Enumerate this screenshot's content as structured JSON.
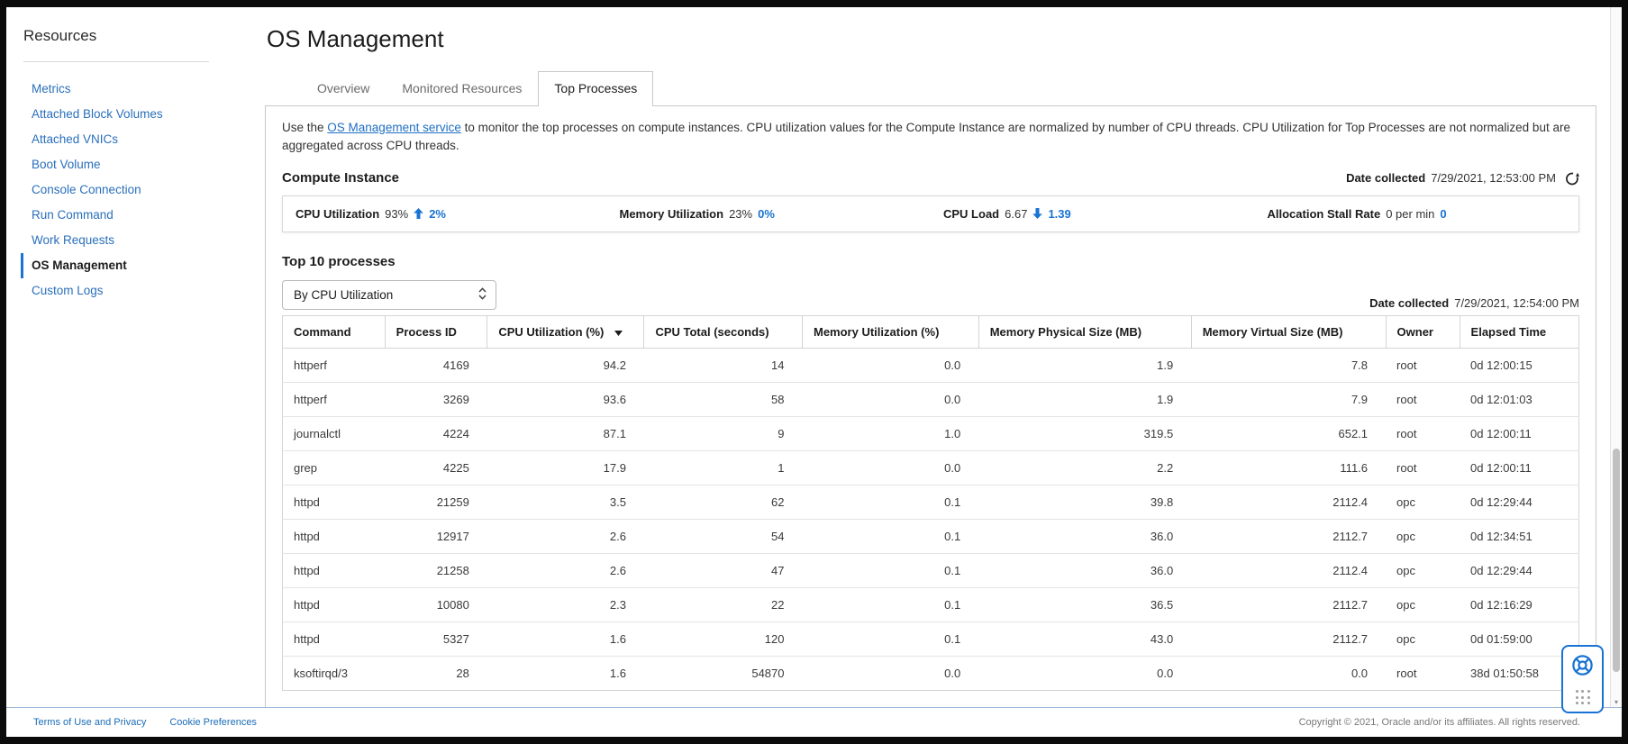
{
  "sidebar": {
    "title": "Resources",
    "items": [
      {
        "label": "Metrics",
        "active": false
      },
      {
        "label": "Attached Block Volumes",
        "active": false
      },
      {
        "label": "Attached VNICs",
        "active": false
      },
      {
        "label": "Boot Volume",
        "active": false
      },
      {
        "label": "Console Connection",
        "active": false
      },
      {
        "label": "Run Command",
        "active": false
      },
      {
        "label": "Work Requests",
        "active": false
      },
      {
        "label": "OS Management",
        "active": true
      },
      {
        "label": "Custom Logs",
        "active": false
      }
    ]
  },
  "header": {
    "title": "OS Management"
  },
  "tabs": [
    {
      "label": "Overview",
      "active": false
    },
    {
      "label": "Monitored Resources",
      "active": false
    },
    {
      "label": "Top Processes",
      "active": true
    }
  ],
  "panel": {
    "description": {
      "prefix": "Use the ",
      "link": "OS Management service",
      "suffix": " to monitor the top processes on compute instances. CPU utilization values for the Compute Instance are normalized by number of CPU threads. CPU Utilization for Top Processes are not normalized but are aggregated across CPU threads."
    },
    "compute_instance": {
      "heading": "Compute Instance",
      "date_collected_label": "Date collected",
      "date_collected_value": "7/29/2021, 12:53:00 PM",
      "stats": [
        {
          "label": "CPU Utilization",
          "value": "93%",
          "trend": "up",
          "delta": "2%"
        },
        {
          "label": "Memory Utilization",
          "value": "23%",
          "trend": "none",
          "delta": "0%"
        },
        {
          "label": "CPU Load",
          "value": "6.67",
          "trend": "down",
          "delta": "1.39"
        },
        {
          "label": "Allocation Stall Rate",
          "value": "0 per min",
          "trend": "none",
          "delta": "0"
        }
      ]
    },
    "processes": {
      "heading": "Top 10 processes",
      "sort_select": {
        "value": "By CPU Utilization"
      },
      "date_collected_label": "Date collected",
      "date_collected_value": "7/29/2021, 12:54:00 PM",
      "table": {
        "columns": [
          {
            "label": "Command",
            "align": "left",
            "sorted": false
          },
          {
            "label": "Process ID",
            "align": "right",
            "sorted": false
          },
          {
            "label": "CPU Utilization (%)",
            "align": "right",
            "sorted": true
          },
          {
            "label": "CPU Total (seconds)",
            "align": "right",
            "sorted": false
          },
          {
            "label": "Memory Utilization (%)",
            "align": "right",
            "sorted": false
          },
          {
            "label": "Memory Physical Size (MB)",
            "align": "right",
            "sorted": false
          },
          {
            "label": "Memory Virtual Size (MB)",
            "align": "right",
            "sorted": false
          },
          {
            "label": "Owner",
            "align": "left",
            "sorted": false
          },
          {
            "label": "Elapsed Time",
            "align": "left",
            "sorted": false
          }
        ],
        "rows": [
          [
            "httperf",
            "4169",
            "94.2",
            "14",
            "0.0",
            "1.9",
            "7.8",
            "root",
            "0d 12:00:15"
          ],
          [
            "httperf",
            "3269",
            "93.6",
            "58",
            "0.0",
            "1.9",
            "7.9",
            "root",
            "0d 12:01:03"
          ],
          [
            "journalctl",
            "4224",
            "87.1",
            "9",
            "1.0",
            "319.5",
            "652.1",
            "root",
            "0d 12:00:11"
          ],
          [
            "grep",
            "4225",
            "17.9",
            "1",
            "0.0",
            "2.2",
            "111.6",
            "root",
            "0d 12:00:11"
          ],
          [
            "httpd",
            "21259",
            "3.5",
            "62",
            "0.1",
            "39.8",
            "2112.4",
            "opc",
            "0d 12:29:44"
          ],
          [
            "httpd",
            "12917",
            "2.6",
            "54",
            "0.1",
            "36.0",
            "2112.7",
            "opc",
            "0d 12:34:51"
          ],
          [
            "httpd",
            "21258",
            "2.6",
            "47",
            "0.1",
            "36.0",
            "2112.4",
            "opc",
            "0d 12:29:44"
          ],
          [
            "httpd",
            "10080",
            "2.3",
            "22",
            "0.1",
            "36.5",
            "2112.7",
            "opc",
            "0d 12:16:29"
          ],
          [
            "httpd",
            "5327",
            "1.6",
            "120",
            "0.1",
            "43.0",
            "2112.7",
            "opc",
            "0d 01:59:00"
          ],
          [
            "ksoftirqd/3",
            "28",
            "1.6",
            "54870",
            "0.0",
            "0.0",
            "0.0",
            "root",
            "38d 01:50:58"
          ]
        ]
      }
    }
  },
  "footer": {
    "links": [
      "Terms of Use and Privacy",
      "Cookie Preferences"
    ],
    "copyright": "Copyright © 2021, Oracle and/or its affiliates. All rights reserved."
  },
  "colors": {
    "link_blue": "#1f6fc4",
    "accent_blue": "#1873d3",
    "text_dark": "#1c1c1c",
    "border_gray": "#d4d4d4"
  },
  "icons": {
    "refresh": "refresh-icon",
    "trend_up": "up-arrow-icon",
    "trend_down": "down-arrow-icon",
    "select_chevrons": "select-chevrons-icon",
    "sort_desc": "sort-desc-icon",
    "help": "help-lifering-icon",
    "dots": "dots-grid-icon"
  }
}
